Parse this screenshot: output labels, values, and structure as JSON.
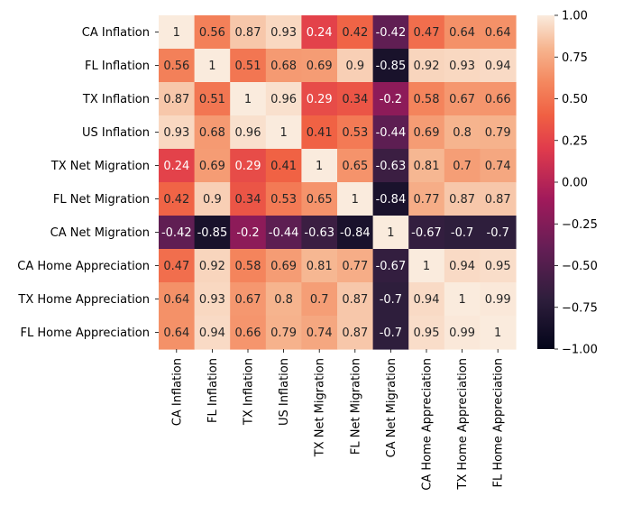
{
  "chart_data": {
    "type": "heatmap",
    "title": "",
    "xlabel": "",
    "ylabel": "",
    "rows": [
      "CA Inflation",
      "FL Inflation",
      "TX Inflation",
      "US Inflation",
      "TX Net Migration",
      "FL Net Migration",
      "CA Net Migration",
      "CA Home Appreciation",
      "TX Home Appreciation",
      "FL Home Appreciation"
    ],
    "columns": [
      "CA Inflation",
      "FL Inflation",
      "TX Inflation",
      "US Inflation",
      "TX Net Migration",
      "FL Net Migration",
      "CA Net Migration",
      "CA Home Appreciation",
      "TX Home Appreciation",
      "FL Home Appreciation"
    ],
    "values": [
      [
        1,
        0.56,
        0.87,
        0.93,
        0.24,
        0.42,
        -0.42,
        0.47,
        0.64,
        0.64
      ],
      [
        0.56,
        1,
        0.51,
        0.68,
        0.69,
        0.9,
        -0.85,
        0.92,
        0.93,
        0.94
      ],
      [
        0.87,
        0.51,
        1,
        0.96,
        0.29,
        0.34,
        -0.2,
        0.58,
        0.67,
        0.66
      ],
      [
        0.93,
        0.68,
        0.96,
        1,
        0.41,
        0.53,
        -0.44,
        0.69,
        0.8,
        0.79
      ],
      [
        0.24,
        0.69,
        0.29,
        0.41,
        1,
        0.65,
        -0.63,
        0.81,
        0.7,
        0.74
      ],
      [
        0.42,
        0.9,
        0.34,
        0.53,
        0.65,
        1,
        -0.84,
        0.77,
        0.87,
        0.87
      ],
      [
        -0.42,
        -0.85,
        -0.2,
        -0.44,
        -0.63,
        -0.84,
        1,
        -0.67,
        -0.7,
        -0.7
      ],
      [
        0.47,
        0.92,
        0.58,
        0.69,
        0.81,
        0.77,
        -0.67,
        1,
        0.94,
        0.95
      ],
      [
        0.64,
        0.93,
        0.67,
        0.8,
        0.7,
        0.87,
        -0.7,
        0.94,
        1,
        0.99
      ],
      [
        0.64,
        0.94,
        0.66,
        0.79,
        0.74,
        0.87,
        -0.7,
        0.95,
        0.99,
        1
      ]
    ],
    "cell_labels": [
      [
        "1",
        "0.56",
        "0.87",
        "0.93",
        "0.24",
        "0.42",
        "-0.42",
        "0.47",
        "0.64",
        "0.64"
      ],
      [
        "0.56",
        "1",
        "0.51",
        "0.68",
        "0.69",
        "0.9",
        "-0.85",
        "0.92",
        "0.93",
        "0.94"
      ],
      [
        "0.87",
        "0.51",
        "1",
        "0.96",
        "0.29",
        "0.34",
        "-0.2",
        "0.58",
        "0.67",
        "0.66"
      ],
      [
        "0.93",
        "0.68",
        "0.96",
        "1",
        "0.41",
        "0.53",
        "-0.44",
        "0.69",
        "0.8",
        "0.79"
      ],
      [
        "0.24",
        "0.69",
        "0.29",
        "0.41",
        "1",
        "0.65",
        "-0.63",
        "0.81",
        "0.7",
        "0.74"
      ],
      [
        "0.42",
        "0.9",
        "0.34",
        "0.53",
        "0.65",
        "1",
        "-0.84",
        "0.77",
        "0.87",
        "0.87"
      ],
      [
        "-0.42",
        "-0.85",
        "-0.2",
        "-0.44",
        "-0.63",
        "-0.84",
        "1",
        "-0.67",
        "-0.7",
        "-0.7"
      ],
      [
        "0.47",
        "0.92",
        "0.58",
        "0.69",
        "0.81",
        "0.77",
        "-0.67",
        "1",
        "0.94",
        "0.95"
      ],
      [
        "0.64",
        "0.93",
        "0.67",
        "0.8",
        "0.7",
        "0.87",
        "-0.7",
        "0.94",
        "1",
        "0.99"
      ],
      [
        "0.64",
        "0.94",
        "0.66",
        "0.79",
        "0.74",
        "0.87",
        "-0.7",
        "0.95",
        "0.99",
        "1"
      ]
    ],
    "colorbar": {
      "range": [
        -1,
        1
      ],
      "ticks": [
        1.0,
        0.75,
        0.5,
        0.25,
        0.0,
        -0.25,
        -0.5,
        -0.75,
        -1.0
      ],
      "tick_labels": [
        "1.00",
        "0.75",
        "0.50",
        "0.25",
        "0.00",
        "−0.25",
        "−0.50",
        "−0.75",
        "−1.00"
      ],
      "position": "right"
    },
    "colormap_stops": [
      [
        0.0,
        "#03051a"
      ],
      [
        0.15,
        "#2e1e3c"
      ],
      [
        0.3,
        "#641e55"
      ],
      [
        0.45,
        "#a11a5b"
      ],
      [
        0.6,
        "#e03b4c"
      ],
      [
        0.7,
        "#f06043"
      ],
      [
        0.8,
        "#f4885f"
      ],
      [
        0.9,
        "#f6b48e"
      ],
      [
        1.0,
        "#faebdd"
      ]
    ],
    "grid": false
  }
}
